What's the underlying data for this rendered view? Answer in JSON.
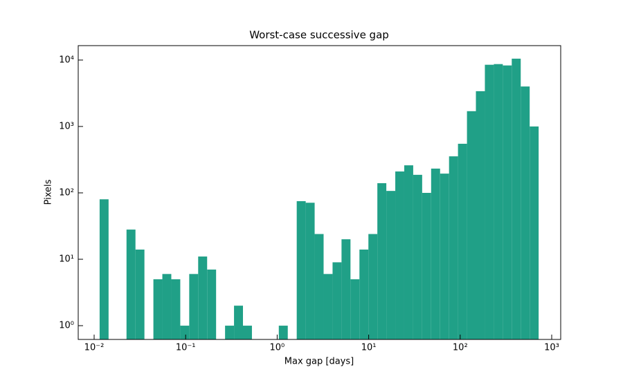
{
  "chart_data": {
    "type": "histogram",
    "title": "Worst-case successive gap",
    "x_label": "Max gap [days]",
    "y_label": "Pixels",
    "xscale": "log",
    "yscale": "log",
    "color": "#20a087",
    "bins": [
      0.01148,
      0.01438,
      0.01803,
      0.02258,
      0.02829,
      0.03544,
      0.04441,
      0.05564,
      0.0697,
      0.08733,
      0.1094,
      0.137,
      0.1717,
      0.2151,
      0.2695,
      0.3377,
      0.423,
      0.53,
      0.664,
      0.832,
      1.042,
      1.306,
      1.636,
      2.05,
      2.568,
      3.217,
      4.031,
      5.05,
      6.327,
      7.927,
      9.931,
      12.44,
      15.59,
      19.53,
      24.47,
      30.66,
      38.41,
      48.12,
      60.29,
      75.54,
      94.6,
      118.6,
      148.5,
      186.1,
      233.2,
      292.2,
      366.0,
      458.6,
      574.6,
      719.8
    ],
    "values": [
      80,
      0,
      0,
      28,
      14,
      0,
      5,
      6,
      5,
      1,
      6,
      11,
      7,
      0,
      1,
      2,
      1,
      0,
      0,
      0,
      1,
      0,
      75,
      71,
      24,
      6,
      9,
      20,
      5,
      14,
      24,
      140,
      107,
      210,
      260,
      187,
      100,
      232,
      195,
      355,
      549,
      1700,
      3400,
      8500,
      8700,
      8300,
      10500,
      4000,
      1000
    ],
    "xlim": [
      0.0067,
      1254
    ],
    "ylim": [
      0.62,
      16500
    ],
    "xticks": [
      {
        "value": 0.01,
        "label": "10⁻²"
      },
      {
        "value": 0.1,
        "label": "10⁻¹"
      },
      {
        "value": 1,
        "label": "10⁰"
      },
      {
        "value": 10,
        "label": "10¹"
      },
      {
        "value": 100,
        "label": "10²"
      },
      {
        "value": 1000,
        "label": "10³"
      }
    ],
    "yticks": [
      {
        "value": 1,
        "label": "10⁰"
      },
      {
        "value": 10,
        "label": "10¹"
      },
      {
        "value": 100,
        "label": "10²"
      },
      {
        "value": 1000,
        "label": "10³"
      },
      {
        "value": 10000,
        "label": "10⁴"
      }
    ]
  }
}
